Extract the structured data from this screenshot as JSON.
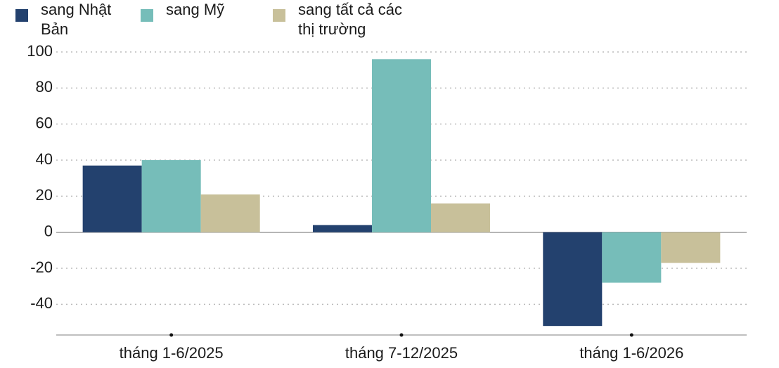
{
  "chart_data": {
    "type": "bar",
    "categories": [
      "tháng 1-6/2025",
      "tháng 7-12/2025",
      "tháng 1-6/2026"
    ],
    "series": [
      {
        "name": "sang Nhật Bản",
        "color": "#23416e",
        "values": [
          37,
          4,
          -52
        ]
      },
      {
        "name": "sang Mỹ",
        "color": "#76bdb9",
        "values": [
          40,
          96,
          -28
        ]
      },
      {
        "name": "sang tất cả các thị trường",
        "color": "#c8c09a",
        "values": [
          21,
          16,
          -17
        ]
      }
    ],
    "ylim": [
      -57,
      100
    ],
    "yticks": [
      -40,
      -20,
      0,
      20,
      40,
      60,
      80,
      100
    ],
    "grid": true,
    "legend": "top-left"
  }
}
